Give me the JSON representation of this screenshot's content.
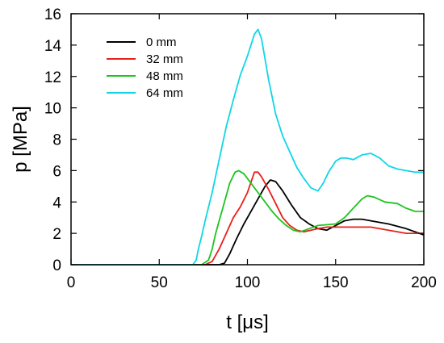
{
  "chart_data": {
    "type": "line",
    "xlabel": "t [μs]",
    "ylabel": "p [MPa]",
    "xlim": [
      0,
      200
    ],
    "ylim": [
      0,
      16
    ],
    "xticks": [
      0,
      50,
      100,
      150,
      200
    ],
    "yticks": [
      0,
      2,
      4,
      6,
      8,
      10,
      12,
      14,
      16
    ],
    "grid": false,
    "legend_position": "top-left",
    "series": [
      {
        "name": "0 mm",
        "color": "#000000",
        "points": [
          [
            0,
            0
          ],
          [
            84,
            0
          ],
          [
            87,
            0.1
          ],
          [
            90,
            0.7
          ],
          [
            94,
            1.7
          ],
          [
            98,
            2.6
          ],
          [
            102,
            3.4
          ],
          [
            106,
            4.2
          ],
          [
            110,
            5.0
          ],
          [
            113,
            5.4
          ],
          [
            116,
            5.3
          ],
          [
            120,
            4.7
          ],
          [
            125,
            3.8
          ],
          [
            130,
            3.0
          ],
          [
            135,
            2.6
          ],
          [
            140,
            2.3
          ],
          [
            145,
            2.2
          ],
          [
            150,
            2.5
          ],
          [
            155,
            2.8
          ],
          [
            160,
            2.9
          ],
          [
            165,
            2.9
          ],
          [
            170,
            2.8
          ],
          [
            180,
            2.6
          ],
          [
            190,
            2.3
          ],
          [
            195,
            2.1
          ],
          [
            200,
            1.9
          ]
        ]
      },
      {
        "name": "32 mm",
        "color": "#e8201b",
        "points": [
          [
            0,
            0
          ],
          [
            76,
            0
          ],
          [
            80,
            0.2
          ],
          [
            84,
            1.0
          ],
          [
            88,
            2.0
          ],
          [
            92,
            3.0
          ],
          [
            96,
            3.7
          ],
          [
            100,
            4.6
          ],
          [
            104,
            5.9
          ],
          [
            106,
            5.9
          ],
          [
            108,
            5.6
          ],
          [
            112,
            4.8
          ],
          [
            116,
            3.9
          ],
          [
            120,
            3.0
          ],
          [
            124,
            2.5
          ],
          [
            128,
            2.2
          ],
          [
            132,
            2.1
          ],
          [
            136,
            2.2
          ],
          [
            140,
            2.3
          ],
          [
            145,
            2.4
          ],
          [
            150,
            2.4
          ],
          [
            160,
            2.4
          ],
          [
            170,
            2.4
          ],
          [
            180,
            2.2
          ],
          [
            190,
            2.0
          ],
          [
            200,
            2.0
          ]
        ]
      },
      {
        "name": "48 mm",
        "color": "#1ec41e",
        "points": [
          [
            0,
            0
          ],
          [
            74,
            0
          ],
          [
            78,
            0.3
          ],
          [
            80,
            1.0
          ],
          [
            82,
            2.0
          ],
          [
            84,
            2.8
          ],
          [
            87,
            4.0
          ],
          [
            90,
            5.2
          ],
          [
            93,
            5.9
          ],
          [
            95,
            6.0
          ],
          [
            98,
            5.8
          ],
          [
            102,
            5.2
          ],
          [
            106,
            4.6
          ],
          [
            110,
            4.0
          ],
          [
            114,
            3.4
          ],
          [
            118,
            2.9
          ],
          [
            122,
            2.5
          ],
          [
            126,
            2.2
          ],
          [
            130,
            2.1
          ],
          [
            135,
            2.3
          ],
          [
            140,
            2.5
          ],
          [
            150,
            2.6
          ],
          [
            155,
            3.0
          ],
          [
            160,
            3.6
          ],
          [
            165,
            4.2
          ],
          [
            168,
            4.4
          ],
          [
            172,
            4.3
          ],
          [
            178,
            4.0
          ],
          [
            185,
            3.9
          ],
          [
            190,
            3.6
          ],
          [
            195,
            3.4
          ],
          [
            200,
            3.4
          ]
        ]
      },
      {
        "name": "64 mm",
        "color": "#10d6e6",
        "points": [
          [
            0,
            0
          ],
          [
            69,
            0
          ],
          [
            71,
            0.3
          ],
          [
            72,
            0.9
          ],
          [
            74,
            1.8
          ],
          [
            76,
            2.8
          ],
          [
            80,
            4.6
          ],
          [
            84,
            6.7
          ],
          [
            88,
            8.8
          ],
          [
            92,
            10.5
          ],
          [
            96,
            12.1
          ],
          [
            100,
            13.3
          ],
          [
            104,
            14.7
          ],
          [
            106,
            15.0
          ],
          [
            108,
            14.4
          ],
          [
            112,
            11.8
          ],
          [
            116,
            9.6
          ],
          [
            120,
            8.2
          ],
          [
            124,
            7.2
          ],
          [
            128,
            6.2
          ],
          [
            132,
            5.5
          ],
          [
            136,
            4.9
          ],
          [
            140,
            4.7
          ],
          [
            143,
            5.2
          ],
          [
            146,
            5.9
          ],
          [
            150,
            6.6
          ],
          [
            153,
            6.8
          ],
          [
            156,
            6.8
          ],
          [
            160,
            6.7
          ],
          [
            165,
            7.0
          ],
          [
            170,
            7.1
          ],
          [
            175,
            6.8
          ],
          [
            180,
            6.3
          ],
          [
            185,
            6.1
          ],
          [
            190,
            6.0
          ],
          [
            195,
            5.9
          ],
          [
            200,
            5.9
          ]
        ]
      }
    ]
  }
}
